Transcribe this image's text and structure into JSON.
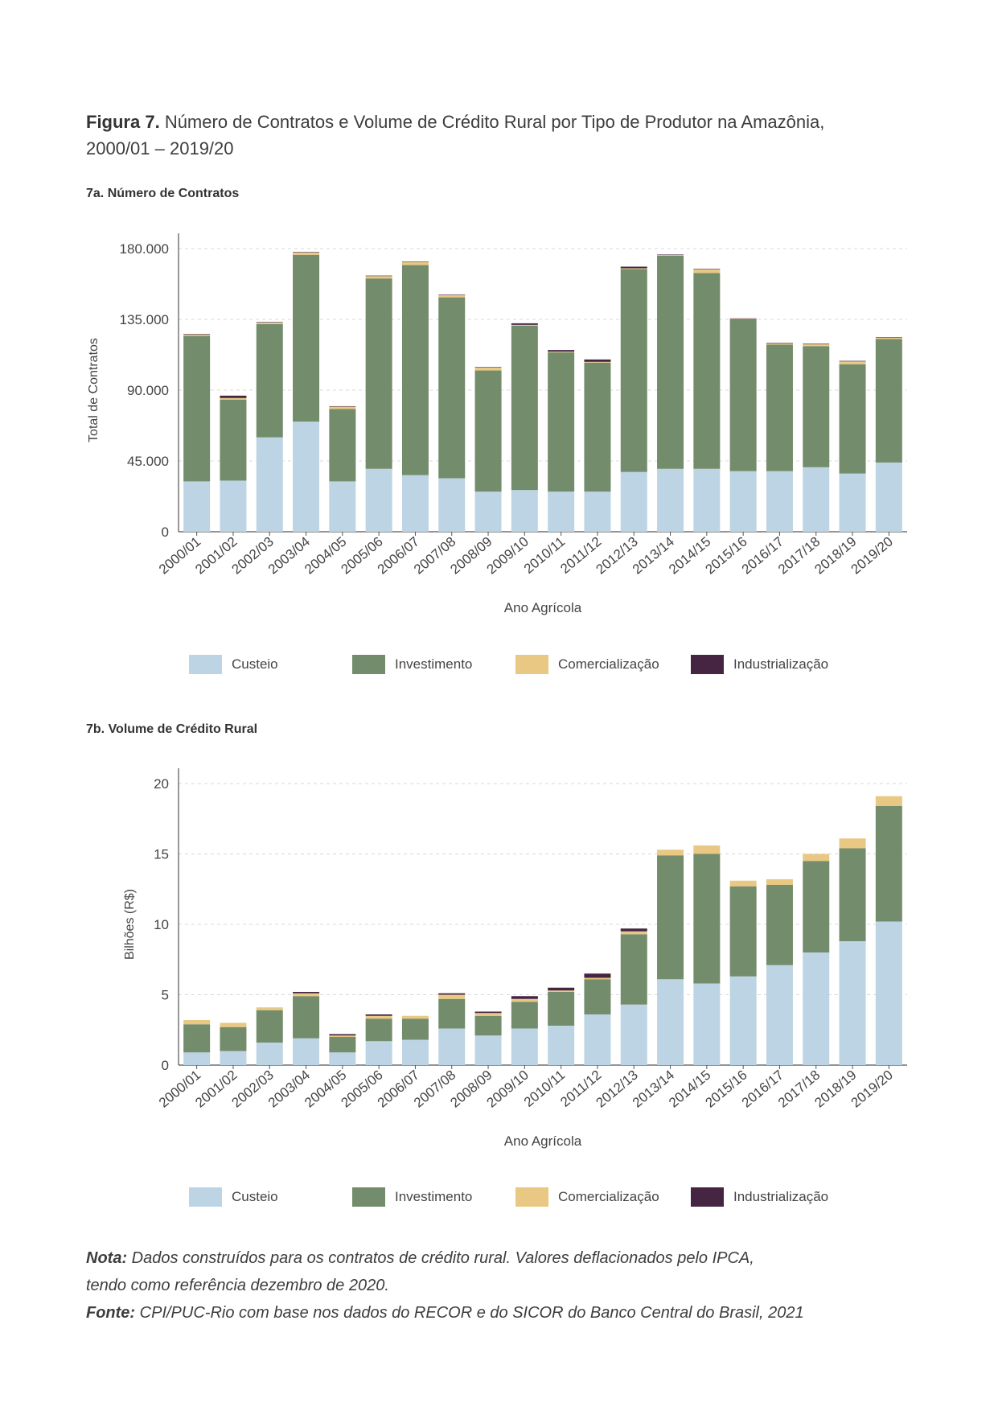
{
  "figure": {
    "label": "Figura 7.",
    "title_line1": "Número de Contratos e Volume de Crédito Rural por Tipo de Produtor na Amazônia,",
    "title_line2": "2000/01 – 2019/20"
  },
  "notes": {
    "nota_label": "Nota:",
    "nota_text_line1": "Dados construídos para os contratos de crédito rural. Valores deflacionados pelo IPCA,",
    "nota_text_line2": "tendo como referência dezembro de 2020.",
    "fonte_label": "Fonte:",
    "fonte_text": "CPI/PUC-Rio com base nos dados do RECOR e do SICOR do Banco Central do Brasil, 2021"
  },
  "colors": {
    "Custeio": "#bdd4e4",
    "Investimento": "#738c6b",
    "Comercialização": "#e8c882",
    "Industrialização": "#462543"
  },
  "chart_data": [
    {
      "type": "bar",
      "stacked": true,
      "title": "7a. Número de Contratos",
      "xlabel": "Ano Agrícola",
      "ylabel": "Total de Contratos",
      "ylim": [
        0,
        180000
      ],
      "yticks": [
        0,
        45000,
        90000,
        135000,
        180000
      ],
      "ytick_labels": [
        "0",
        "45.000",
        "90.000",
        "135.000",
        "180.000"
      ],
      "grid": "horizontal dashed",
      "legend_position": "bottom",
      "categories": [
        "2000/01",
        "2001/02",
        "2002/03",
        "2003/04",
        "2004/05",
        "2005/06",
        "2006/07",
        "2007/08",
        "2008/09",
        "2009/10",
        "2010/11",
        "2011/12",
        "2012/13",
        "2013/14",
        "2014/15",
        "2015/16",
        "2016/17",
        "2017/18",
        "2018/19",
        "2019/20"
      ],
      "series": [
        {
          "name": "Custeio",
          "values": [
            32000,
            32500,
            60000,
            70000,
            32000,
            40000,
            36000,
            34000,
            25500,
            26500,
            25500,
            25500,
            38000,
            40000,
            40000,
            38500,
            38500,
            41000,
            37000,
            44000
          ]
        },
        {
          "name": "Investimento",
          "values": [
            92500,
            51500,
            72000,
            106000,
            46000,
            121000,
            133500,
            115000,
            77000,
            104500,
            88500,
            82000,
            129000,
            135500,
            124500,
            96500,
            80500,
            77000,
            69500,
            78500
          ]
        },
        {
          "name": "Comercialização",
          "values": [
            1000,
            1000,
            1000,
            1500,
            1500,
            1500,
            2000,
            1500,
            2000,
            500,
            500,
            500,
            500,
            500,
            2500,
            500,
            1000,
            1500,
            2000,
            1000
          ]
        },
        {
          "name": "Industrialização",
          "values": [
            200,
            1500,
            300,
            300,
            300,
            300,
            200,
            200,
            200,
            1000,
            1000,
            1500,
            1000,
            200,
            100,
            100,
            100,
            100,
            100,
            100
          ]
        }
      ]
    },
    {
      "type": "bar",
      "stacked": true,
      "title": "7b. Volume de Crédito Rural",
      "xlabel": "Ano Agrícola",
      "ylabel": "Bilhões (R$)",
      "ylim": [
        0,
        20
      ],
      "yticks": [
        0,
        5,
        10,
        15,
        20
      ],
      "ytick_labels": [
        "0",
        "5",
        "10",
        "15",
        "20"
      ],
      "grid": "horizontal dashed",
      "legend_position": "bottom",
      "categories": [
        "2000/01",
        "2001/02",
        "2002/03",
        "2003/04",
        "2004/05",
        "2005/06",
        "2006/07",
        "2007/08",
        "2008/09",
        "2009/10",
        "2010/11",
        "2011/12",
        "2012/13",
        "2013/14",
        "2014/15",
        "2015/16",
        "2016/17",
        "2017/18",
        "2018/19",
        "2019/20"
      ],
      "series": [
        {
          "name": "Custeio",
          "values": [
            0.9,
            1.0,
            1.6,
            1.9,
            0.9,
            1.7,
            1.8,
            2.6,
            2.1,
            2.6,
            2.8,
            3.6,
            4.3,
            6.1,
            5.8,
            6.3,
            7.1,
            8.0,
            8.8,
            10.2
          ]
        },
        {
          "name": "Investimento",
          "values": [
            2.0,
            1.7,
            2.3,
            3.0,
            1.1,
            1.6,
            1.5,
            2.1,
            1.4,
            1.9,
            2.4,
            2.5,
            5.0,
            8.8,
            9.2,
            6.4,
            5.7,
            6.5,
            6.6,
            8.2
          ]
        },
        {
          "name": "Comercialização",
          "values": [
            0.3,
            0.3,
            0.2,
            0.2,
            0.1,
            0.2,
            0.2,
            0.3,
            0.2,
            0.2,
            0.1,
            0.1,
            0.2,
            0.4,
            0.6,
            0.4,
            0.4,
            0.5,
            0.7,
            0.7
          ]
        },
        {
          "name": "Industrialização",
          "values": [
            0.0,
            0.0,
            0.0,
            0.1,
            0.1,
            0.1,
            0.0,
            0.1,
            0.1,
            0.2,
            0.2,
            0.3,
            0.2,
            0.0,
            0.0,
            0.0,
            0.0,
            0.0,
            0.0,
            0.0
          ]
        }
      ]
    }
  ]
}
